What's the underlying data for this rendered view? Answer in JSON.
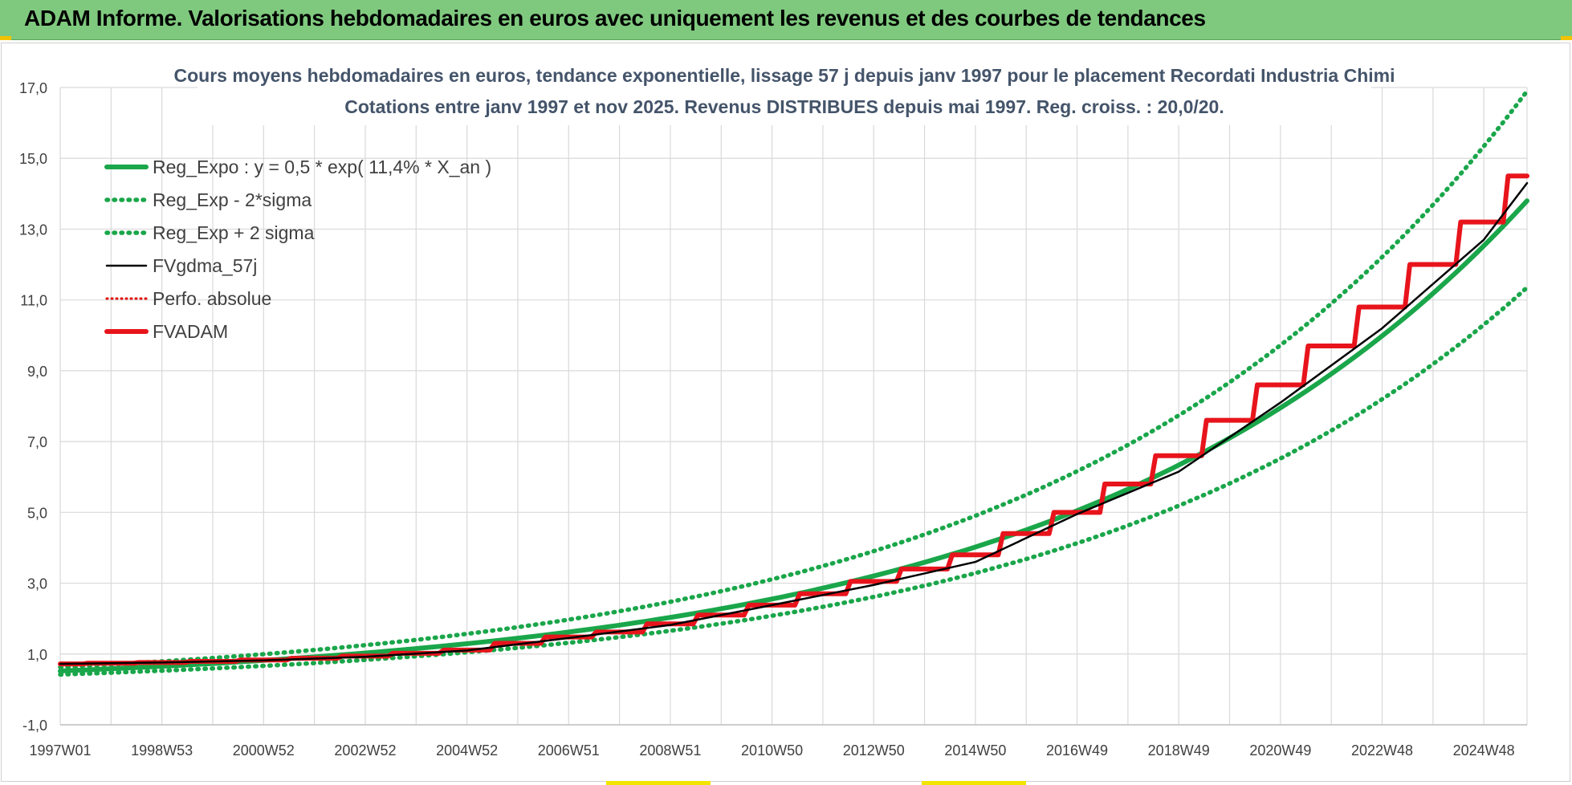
{
  "header": {
    "title": "ADAM Informe. Valorisations hebdomadaires en euros avec uniquement les revenus et des courbes de tendances"
  },
  "chart_data": {
    "type": "line",
    "title_line1": "Cours moyens hebdomadaires en euros, tendance exponentielle, lissage 57 j depuis janv 1997  pour le placement Recordati Industria Chimi",
    "title_line2": "Cotations entre janv 1997 et nov 2025. Revenus DISTRIBUES depuis mai 1997.  Reg. croiss. : 20,0/20.",
    "ylim": [
      -1,
      17
    ],
    "yticks": [
      "-1,0",
      "1,0",
      "3,0",
      "5,0",
      "7,0",
      "9,0",
      "11,0",
      "13,0",
      "15,0",
      "17,0"
    ],
    "ytick_values": [
      -1,
      1,
      3,
      5,
      7,
      9,
      11,
      13,
      15,
      17
    ],
    "xlim": [
      0,
      28.85
    ],
    "xtick_labels": [
      "1997W01",
      "1998W53",
      "2000W52",
      "2002W52",
      "2004W52",
      "2006W51",
      "2008W51",
      "2010W50",
      "2012W50",
      "2014W50",
      "2016W49",
      "2018W49",
      "2020W49",
      "2022W48",
      "2024W48"
    ],
    "xtick_years": [
      0,
      2,
      4,
      6,
      8,
      10,
      12,
      14,
      16,
      18,
      20,
      22,
      24,
      26,
      28
    ],
    "minor_grid_years": [
      1,
      3,
      5,
      7,
      9,
      11,
      13,
      15,
      17,
      19,
      21,
      23,
      25,
      27
    ],
    "grid": true,
    "legend_position": "top-left",
    "colors": {
      "reg_expo": "#1aa64a",
      "reg_band": "#1aa64a",
      "fvgdma": "#000000",
      "perfo": "#e00000",
      "fvadam": "#e8141c"
    },
    "series": [
      {
        "name": "Reg_Expo : y = 0,5 * exp( 11,4% *  X_an )",
        "style": "solid-thick-green",
        "x": [
          0,
          2,
          4,
          6,
          8,
          10,
          12,
          14,
          16,
          18,
          20,
          22,
          24,
          26,
          28,
          28.85
        ],
        "values": [
          0.52,
          0.64,
          0.81,
          1.02,
          1.28,
          1.61,
          2.02,
          2.54,
          3.19,
          4.0,
          5.03,
          6.32,
          7.94,
          9.98,
          12.54,
          13.8
        ]
      },
      {
        "name": "Reg_Exp - 2*sigma",
        "style": "dotted-green",
        "x": [
          0,
          2,
          4,
          6,
          8,
          10,
          12,
          14,
          16,
          18,
          20,
          22,
          24,
          26,
          28,
          28.85
        ],
        "values": [
          0.42,
          0.53,
          0.67,
          0.84,
          1.06,
          1.33,
          1.67,
          2.09,
          2.63,
          3.3,
          4.15,
          5.22,
          6.55,
          8.23,
          10.35,
          11.35
        ]
      },
      {
        "name": "Reg_Exp + 2 sigma",
        "style": "dotted-green",
        "x": [
          0,
          2,
          4,
          6,
          8,
          10,
          12,
          14,
          16,
          18,
          20,
          22,
          24,
          26,
          28,
          28.85
        ],
        "values": [
          0.63,
          0.79,
          0.99,
          1.25,
          1.57,
          1.97,
          2.47,
          3.11,
          3.9,
          4.9,
          6.16,
          7.74,
          9.72,
          12.22,
          15.36,
          16.9
        ]
      },
      {
        "name": "FVgdma_57j",
        "style": "solid-black",
        "x": [
          0,
          2,
          4,
          6,
          8,
          10,
          12,
          14,
          16,
          18,
          20,
          22,
          24,
          26,
          28,
          28.85
        ],
        "values": [
          0.72,
          0.76,
          0.82,
          0.92,
          1.1,
          1.45,
          1.82,
          2.38,
          2.95,
          3.6,
          4.95,
          6.15,
          8.1,
          10.2,
          12.7,
          14.3
        ]
      },
      {
        "name": "Perfo. absolue",
        "style": "dotted-red",
        "x": [
          0,
          28.85
        ],
        "values": [
          0.72,
          14.4
        ]
      },
      {
        "name": "FVADAM",
        "style": "solid-thick-red-steps",
        "x": [
          0,
          1,
          2,
          3,
          4,
          5,
          6,
          7,
          8,
          9,
          10,
          11,
          12,
          13,
          14,
          15,
          16,
          17,
          18,
          19,
          20,
          21,
          22,
          23,
          24,
          25,
          26,
          27,
          28,
          28.85
        ],
        "values": [
          0.72,
          0.74,
          0.76,
          0.79,
          0.83,
          0.88,
          0.94,
          1.02,
          1.11,
          1.3,
          1.48,
          1.62,
          1.85,
          2.1,
          2.38,
          2.7,
          3.05,
          3.4,
          3.8,
          4.4,
          5.0,
          5.8,
          6.6,
          7.6,
          8.6,
          9.7,
          10.8,
          12.0,
          13.2,
          14.5
        ]
      }
    ]
  }
}
